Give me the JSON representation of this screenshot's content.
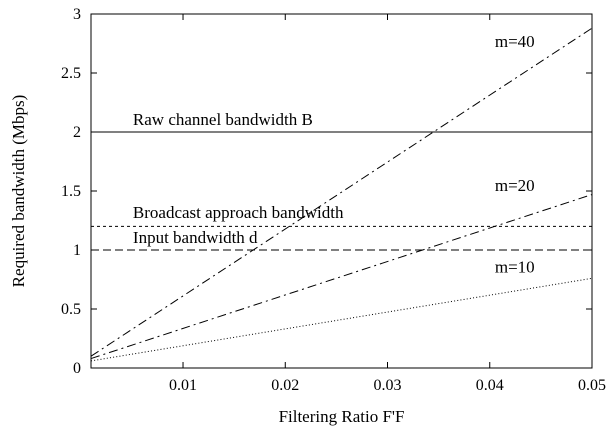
{
  "chart_data": {
    "type": "line",
    "xlabel": "Filtering Ratio F'F",
    "ylabel": "Required bandwidth (Mbps)",
    "xlim": [
      0.001,
      0.05
    ],
    "ylim": [
      0,
      3
    ],
    "x_ticks": [
      0.01,
      0.02,
      0.03,
      0.04,
      0.05
    ],
    "x_tick_labels": [
      "0.01",
      "0.02",
      "0.03",
      "0.04",
      "0.05"
    ],
    "y_ticks": [
      0,
      0.5,
      1,
      1.5,
      2,
      2.5,
      3
    ],
    "y_tick_labels": [
      "0",
      "0.5",
      "1",
      "1.5",
      "2",
      "2.5",
      "3"
    ],
    "grid": false,
    "series": [
      {
        "name": "m=40",
        "style": "dash-dot",
        "x": [
          0.001,
          0.05
        ],
        "y": [
          0.1,
          2.88
        ]
      },
      {
        "name": "m=20",
        "style": "dash-dot",
        "x": [
          0.001,
          0.05
        ],
        "y": [
          0.08,
          1.47
        ]
      },
      {
        "name": "m=10",
        "style": "dotted",
        "x": [
          0.001,
          0.05
        ],
        "y": [
          0.06,
          0.76
        ]
      },
      {
        "name": "Raw channel bandwidth B",
        "style": "solid",
        "x": [
          0.001,
          0.05
        ],
        "y": [
          2.0,
          2.0
        ]
      },
      {
        "name": "Broadcast approach bandwidth",
        "style": "dashed-fine",
        "x": [
          0.001,
          0.05
        ],
        "y": [
          1.2,
          1.2
        ]
      },
      {
        "name": "Input bandwidth d",
        "style": "dashed",
        "x": [
          0.001,
          0.05
        ],
        "y": [
          1.0,
          1.0
        ]
      }
    ],
    "annotations": [
      {
        "text": "m=40",
        "x": 0.0405,
        "y": 2.72
      },
      {
        "text": "m=20",
        "x": 0.0405,
        "y": 1.5
      },
      {
        "text": "m=10",
        "x": 0.0405,
        "y": 0.81
      },
      {
        "text": "Raw channel bandwidth B",
        "x": 0.0051,
        "y": 2.06
      },
      {
        "text": "Broadcast approach bandwidth",
        "x": 0.0051,
        "y": 1.27
      },
      {
        "text": "Input bandwidth d",
        "x": 0.0051,
        "y": 1.06
      }
    ]
  }
}
